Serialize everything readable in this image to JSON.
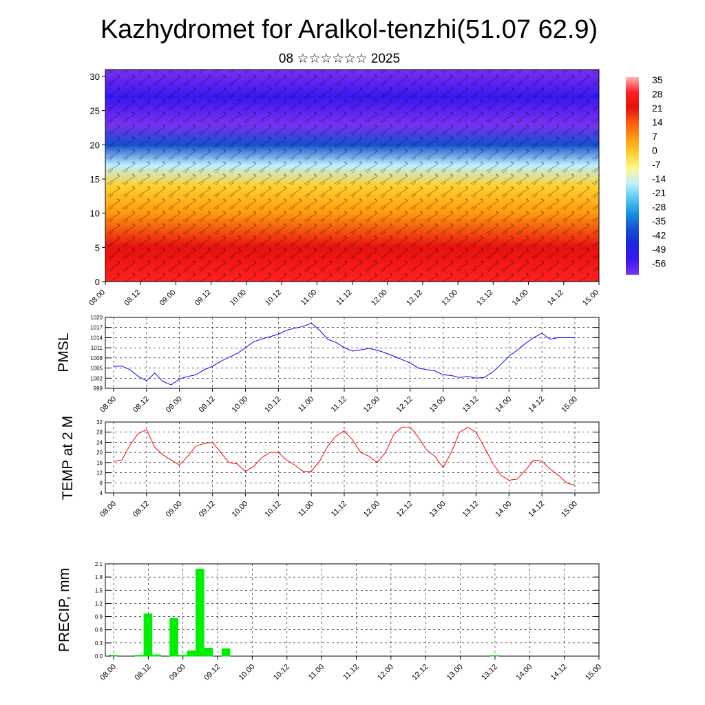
{
  "title": "Kazhydromet for Aralkol-tenzhi(51.07 62.9)",
  "subtitle": "08 ☆☆☆☆☆☆ 2025",
  "chart_data": [
    {
      "type": "heatmap",
      "panel": "vertical cross-section (temperature shading with wind barbs)",
      "x_tick_labels": [
        "08.00",
        "08.12",
        "09.00",
        "09.12",
        "10.00",
        "10.12",
        "11.00",
        "11.12",
        "12.00",
        "12.12",
        "13.00",
        "13.12",
        "14.00",
        "14.12",
        "15.00"
      ],
      "y_ticks": [
        0,
        5,
        10,
        15,
        20,
        25,
        30
      ],
      "ylim": [
        0,
        31
      ],
      "colorbar": {
        "labels": [
          "35",
          "28",
          "21",
          "14",
          "7",
          "0",
          "-7",
          "-14",
          "-21",
          "-28",
          "-35",
          "-42",
          "-49",
          "-56"
        ],
        "colors": [
          "#ffb5b5",
          "#ff2020",
          "#e81010",
          "#ff5a10",
          "#ff9a10",
          "#ffd030",
          "#fff890",
          "#bfefff",
          "#58c8f0",
          "#1890e0",
          "#1450d0",
          "#1a28e0",
          "#3818f0",
          "#7a30f0"
        ]
      },
      "temperature_by_height": [
        {
          "height": 0,
          "temp": 30
        },
        {
          "height": 5,
          "temp": 24
        },
        {
          "height": 10,
          "temp": 10
        },
        {
          "height": 14,
          "temp": 0
        },
        {
          "height": 17,
          "temp": -14
        },
        {
          "height": 20,
          "temp": -35
        },
        {
          "height": 23,
          "temp": -56
        },
        {
          "height": 27,
          "temp": -49
        },
        {
          "height": 31,
          "temp": -60
        }
      ]
    },
    {
      "type": "line",
      "ylabel": "PMSL",
      "ylim": [
        999,
        1020
      ],
      "y_ticks": [
        999,
        1002,
        1005,
        1008,
        1011,
        1014,
        1017,
        1020
      ],
      "x_tick_labels": [
        "08.00",
        "08.12",
        "09.00",
        "09.12",
        "10.00",
        "10.12",
        "11.00",
        "11.12",
        "12.00",
        "12.12",
        "13.00",
        "13.12",
        "14.00",
        "14.12",
        "15.00"
      ],
      "xlim": [
        0,
        168
      ],
      "color": "#0000ff",
      "series": [
        {
          "x": [
            0,
            3,
            6,
            9,
            12,
            15,
            18,
            21,
            24,
            27,
            30,
            33,
            36,
            39,
            42,
            45,
            48,
            51,
            54,
            57,
            60,
            63,
            66,
            69,
            72,
            75,
            78,
            81,
            84,
            87,
            90,
            93,
            96,
            99,
            102,
            105,
            108,
            111,
            114,
            117,
            120,
            123,
            126,
            129,
            132,
            135,
            138,
            141,
            144,
            147,
            150,
            153,
            156,
            159,
            162,
            165,
            168
          ],
          "y": [
            1005.5,
            1005.6,
            1004.5,
            1002.5,
            1001.2,
            1003.5,
            1001,
            1000,
            1001.8,
            1002.5,
            1003,
            1004.5,
            1005.5,
            1007,
            1008.2,
            1009.3,
            1011,
            1012.8,
            1013.6,
            1014.3,
            1015,
            1016.2,
            1016.8,
            1017.3,
            1018.3,
            1016.2,
            1013.5,
            1012.6,
            1011,
            1010,
            1010.4,
            1010.8,
            1010.3,
            1009.5,
            1008.5,
            1007.5,
            1006.5,
            1005,
            1004.5,
            1004.2,
            1003,
            1002.8,
            1002.2,
            1002.5,
            1002,
            1002.2,
            1003.8,
            1006,
            1008.5,
            1010.3,
            1012.3,
            1014,
            1015.3,
            1013.5,
            1014,
            1014,
            1014
          ]
        }
      ]
    },
    {
      "type": "line",
      "ylabel": "TEMP at 2 M",
      "ylim": [
        4,
        32
      ],
      "y_ticks": [
        4,
        8,
        12,
        16,
        20,
        24,
        28,
        32
      ],
      "x_tick_labels": [
        "08.00",
        "08.12",
        "09.00",
        "09.12",
        "10.00",
        "10.12",
        "11.00",
        "11.12",
        "12.00",
        "12.12",
        "13.00",
        "13.12",
        "14.00",
        "14.12",
        "15.00"
      ],
      "xlim": [
        0,
        168
      ],
      "color": "#ff0000",
      "series": [
        {
          "x": [
            0,
            3,
            6,
            9,
            12,
            15,
            18,
            21,
            24,
            27,
            30,
            33,
            36,
            39,
            42,
            45,
            48,
            51,
            54,
            57,
            60,
            63,
            66,
            69,
            72,
            75,
            78,
            81,
            84,
            87,
            90,
            93,
            96,
            99,
            102,
            105,
            108,
            111,
            114,
            117,
            120,
            123,
            126,
            129,
            132,
            135,
            138,
            141,
            144,
            147,
            150,
            153,
            156,
            159,
            162,
            165,
            168
          ],
          "y": [
            16.5,
            17,
            23,
            27.5,
            29,
            22,
            19,
            17,
            15,
            18.5,
            22.5,
            23.5,
            24,
            20,
            16,
            15.5,
            12.5,
            14.5,
            18,
            20,
            20,
            17,
            15,
            12.5,
            12.5,
            16.5,
            22.5,
            26.5,
            28.5,
            25,
            20,
            18.5,
            16,
            20,
            27,
            30,
            30,
            26,
            21,
            18.5,
            14,
            20,
            28,
            30,
            28,
            22,
            16,
            11,
            9,
            9.5,
            13,
            17,
            16.5,
            13.5,
            11,
            8,
            7
          ]
        }
      ]
    },
    {
      "type": "bar",
      "ylabel": "PRECIP, mm",
      "ylim": [
        0,
        2.1
      ],
      "y_ticks": [
        "0.0",
        "0.3",
        "0.6",
        "0.9",
        "1.2",
        "1.5",
        "1.8",
        "2.1"
      ],
      "x_tick_labels": [
        "08.00",
        "08.12",
        "09.00",
        "09.12",
        "10.00",
        "10.12",
        "11.00",
        "11.12",
        "12.00",
        "12.12",
        "13.00",
        "13.12",
        "14.00",
        "14.12",
        "15.00"
      ],
      "xlim": [
        0,
        168
      ],
      "color": "#00ee00",
      "bars": [
        {
          "x": 0,
          "value": 0.02
        },
        {
          "x": 9,
          "value": 0.02
        },
        {
          "x": 12,
          "value": 0.96
        },
        {
          "x": 15,
          "value": 0.03
        },
        {
          "x": 21,
          "value": 0.86
        },
        {
          "x": 24,
          "value": 0.02
        },
        {
          "x": 27,
          "value": 0.12
        },
        {
          "x": 30,
          "value": 1.98
        },
        {
          "x": 33,
          "value": 0.18
        },
        {
          "x": 39,
          "value": 0.17
        },
        {
          "x": 132,
          "value": 0.01
        }
      ]
    }
  ]
}
